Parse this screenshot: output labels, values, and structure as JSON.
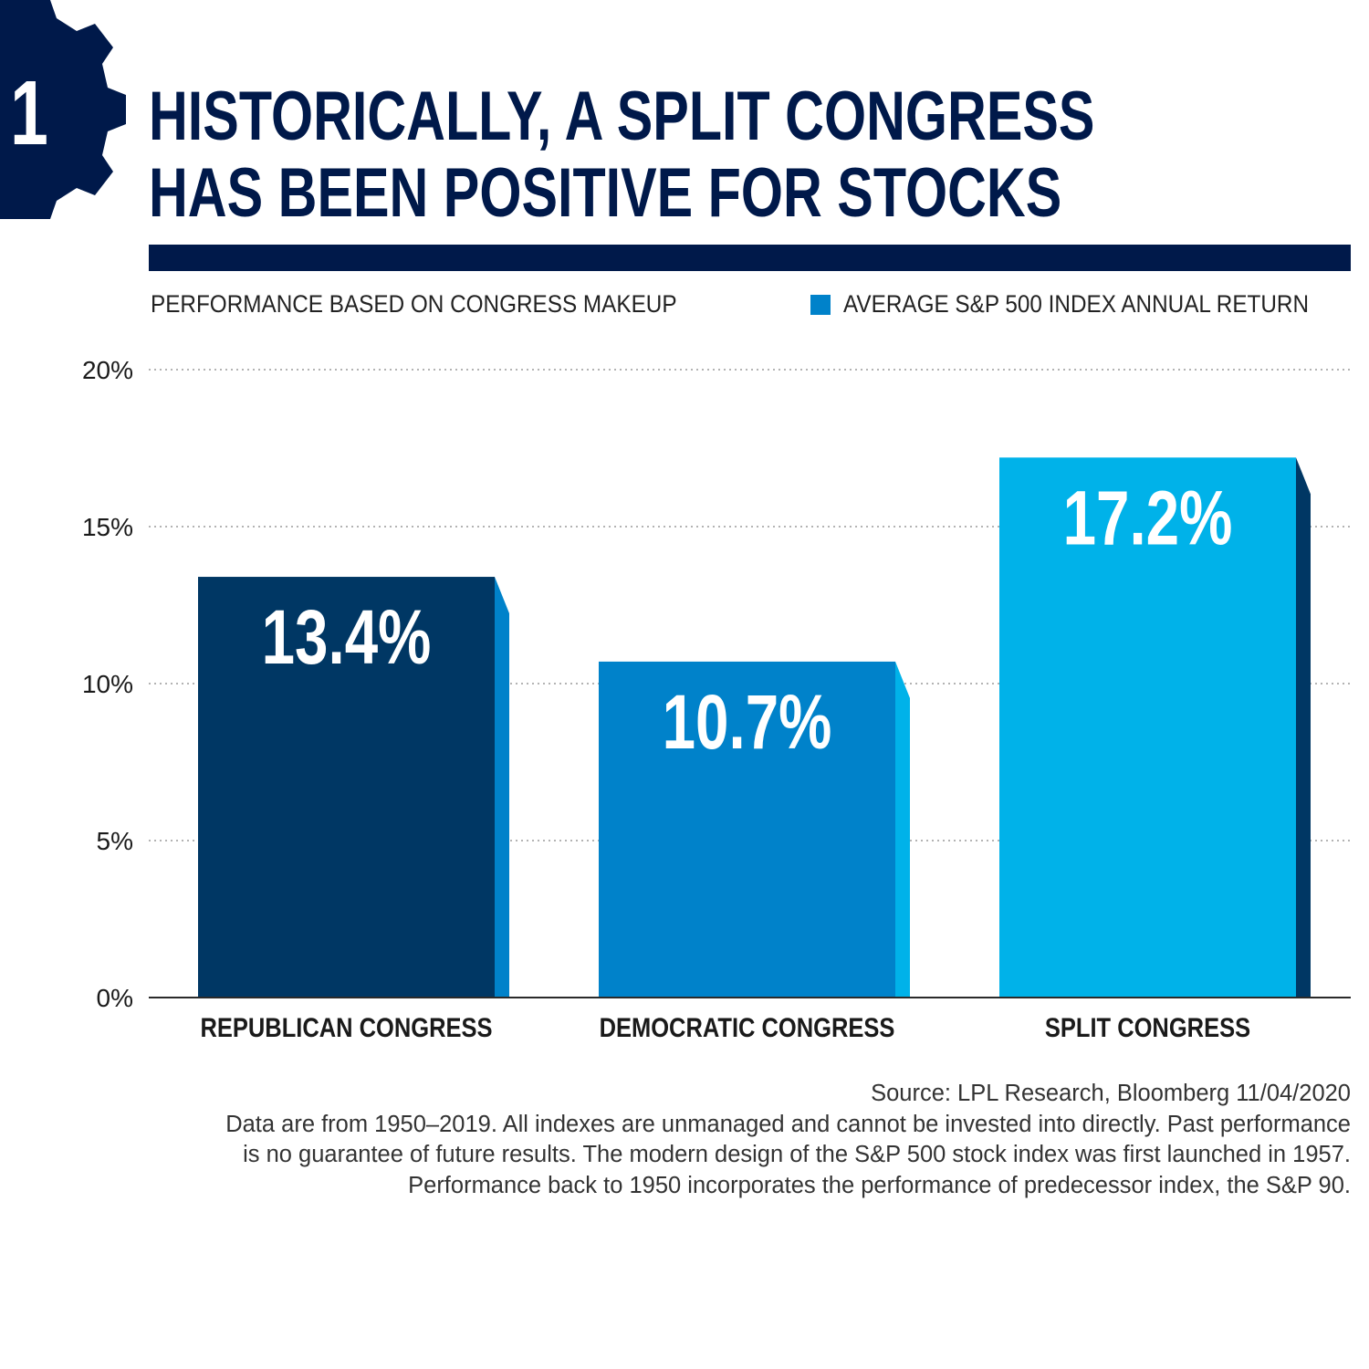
{
  "badge": {
    "number": "1"
  },
  "header": {
    "title_line1": "HISTORICALLY, A SPLIT CONGRESS",
    "title_line2": "HAS BEEN POSITIVE FOR STOCKS",
    "subtitle": "PERFORMANCE BASED ON CONGRESS MAKEUP"
  },
  "legend": {
    "label": "AVERAGE S&P 500 INDEX ANNUAL RETURN",
    "color": "#0082ca"
  },
  "chart_data": {
    "type": "bar",
    "title": "HISTORICALLY, A SPLIT CONGRESS HAS BEEN POSITIVE FOR STOCKS",
    "subtitle": "PERFORMANCE BASED ON CONGRESS MAKEUP",
    "categories": [
      "REPUBLICAN CONGRESS",
      "DEMOCRATIC CONGRESS",
      "SPLIT CONGRESS"
    ],
    "series": [
      {
        "name": "AVERAGE S&P 500 INDEX ANNUAL RETURN",
        "values": [
          13.4,
          10.7,
          17.2
        ]
      }
    ],
    "data_labels": [
      "13.4%",
      "10.7%",
      "17.2%"
    ],
    "bar_colors": [
      "#003764",
      "#0082ca",
      "#00b2e9"
    ],
    "bar_side_colors": [
      "#0082ca",
      "#00b2e9",
      "#003764"
    ],
    "y_ticks": [
      "0%",
      "5%",
      "10%",
      "15%",
      "20%"
    ],
    "ylim": [
      0,
      20
    ],
    "grid": true,
    "legend_position": "top-right"
  },
  "footer": {
    "source": "Source: LPL Research, Bloomberg 11/04/2020",
    "note_line1": "Data are from 1950–2019. All indexes are unmanaged and cannot be invested into directly. Past performance",
    "note_line2": "is no guarantee of future results. The modern design of the S&P 500 stock index was first launched in 1957.",
    "note_line3": "Performance back to 1950 incorporates the performance of predecessor index, the S&P 90."
  }
}
